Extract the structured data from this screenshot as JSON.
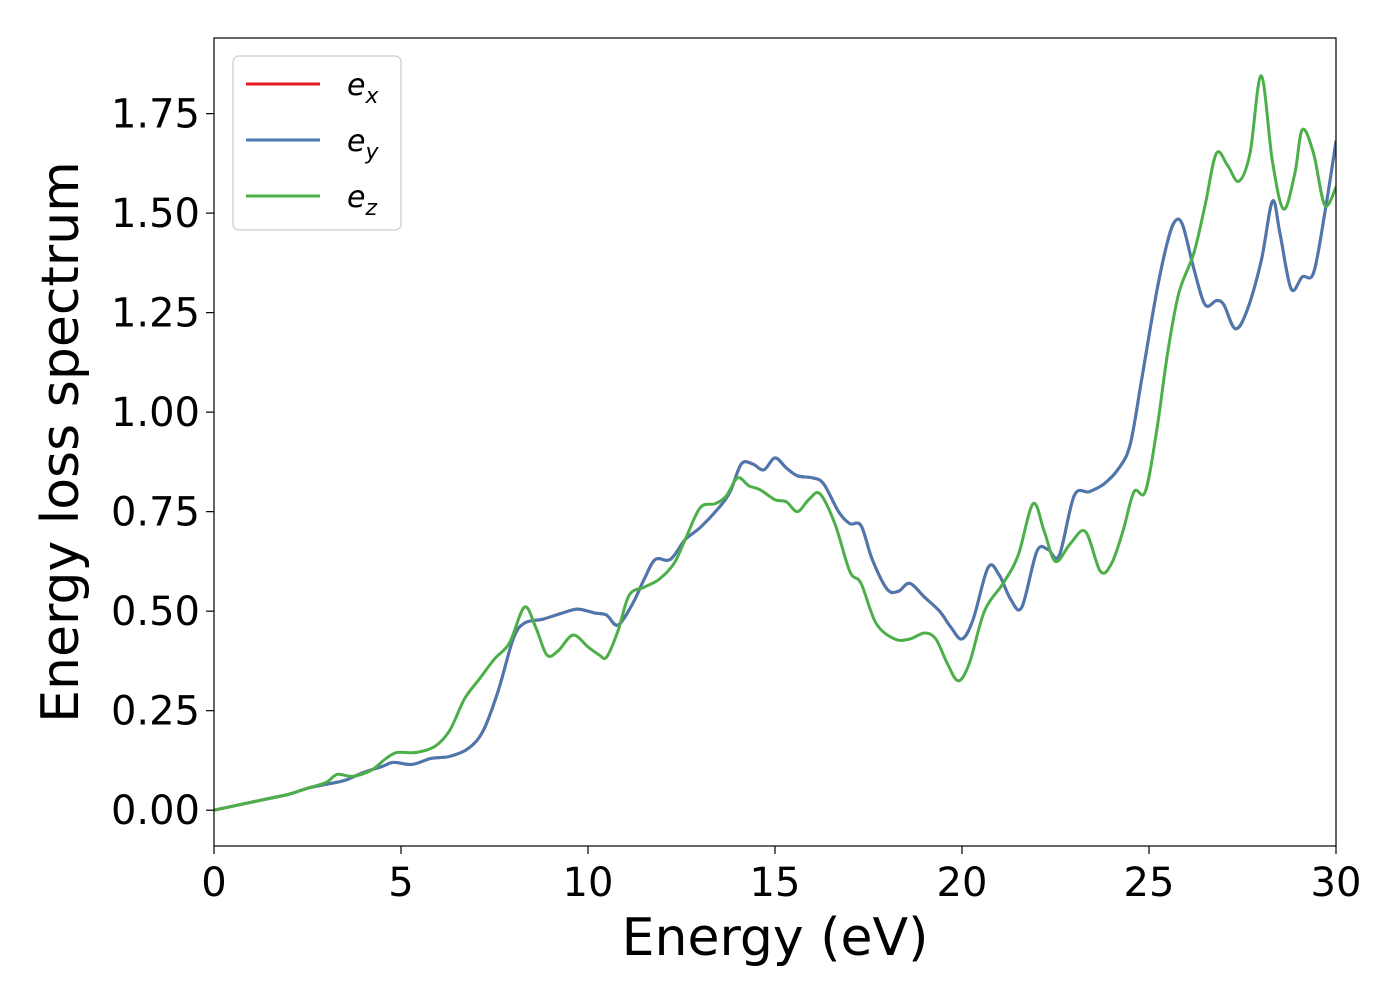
{
  "chart_data": {
    "type": "line",
    "title": "",
    "xlabel": "Energy (eV)",
    "ylabel": "Energy loss spectrum",
    "xlim": [
      0,
      30
    ],
    "ylim": [
      -0.09,
      1.94
    ],
    "grid": false,
    "legend_position": "top-left",
    "x_ticks": [
      "0",
      "5",
      "10",
      "15",
      "20",
      "25",
      "30"
    ],
    "y_ticks": [
      "0.00",
      "0.25",
      "0.50",
      "0.75",
      "1.00",
      "1.25",
      "1.50",
      "1.75"
    ],
    "series": [
      {
        "name": "e_x",
        "legend_base": "e",
        "legend_sub": "x",
        "color": "#e41a1c",
        "points": [
          [
            0,
            0
          ],
          [
            0.5,
            0.01
          ],
          [
            1,
            0.02
          ],
          [
            1.5,
            0.03
          ],
          [
            2,
            0.04
          ],
          [
            2.5,
            0.055
          ],
          [
            3,
            0.065
          ],
          [
            3.5,
            0.075
          ],
          [
            4,
            0.095
          ],
          [
            4.5,
            0.11
          ],
          [
            4.8,
            0.12
          ],
          [
            5.3,
            0.115
          ],
          [
            5.8,
            0.13
          ],
          [
            6.3,
            0.135
          ],
          [
            6.8,
            0.155
          ],
          [
            7.2,
            0.2
          ],
          [
            7.6,
            0.3
          ],
          [
            8,
            0.43
          ],
          [
            8.3,
            0.47
          ],
          [
            8.8,
            0.48
          ],
          [
            9.3,
            0.495
          ],
          [
            9.7,
            0.505
          ],
          [
            10,
            0.5
          ],
          [
            10.2,
            0.495
          ],
          [
            10.5,
            0.49
          ],
          [
            10.8,
            0.465
          ],
          [
            11.2,
            0.52
          ],
          [
            11.5,
            0.58
          ],
          [
            11.8,
            0.63
          ],
          [
            12.2,
            0.63
          ],
          [
            12.6,
            0.68
          ],
          [
            13,
            0.71
          ],
          [
            13.5,
            0.76
          ],
          [
            13.8,
            0.8
          ],
          [
            14.1,
            0.87
          ],
          [
            14.4,
            0.87
          ],
          [
            14.7,
            0.855
          ],
          [
            15,
            0.885
          ],
          [
            15.3,
            0.86
          ],
          [
            15.6,
            0.84
          ],
          [
            16,
            0.835
          ],
          [
            16.3,
            0.82
          ],
          [
            16.7,
            0.75
          ],
          [
            17,
            0.72
          ],
          [
            17.3,
            0.715
          ],
          [
            17.6,
            0.63
          ],
          [
            18,
            0.555
          ],
          [
            18.3,
            0.55
          ],
          [
            18.6,
            0.57
          ],
          [
            19,
            0.535
          ],
          [
            19.4,
            0.5
          ],
          [
            19.7,
            0.46
          ],
          [
            20,
            0.43
          ],
          [
            20.3,
            0.48
          ],
          [
            20.7,
            0.61
          ],
          [
            21,
            0.59
          ],
          [
            21.3,
            0.53
          ],
          [
            21.6,
            0.51
          ],
          [
            22,
            0.65
          ],
          [
            22.3,
            0.655
          ],
          [
            22.6,
            0.64
          ],
          [
            23,
            0.79
          ],
          [
            23.4,
            0.8
          ],
          [
            23.8,
            0.82
          ],
          [
            24.2,
            0.86
          ],
          [
            24.5,
            0.92
          ],
          [
            24.8,
            1.08
          ],
          [
            25.2,
            1.3
          ],
          [
            25.5,
            1.43
          ],
          [
            25.7,
            1.48
          ],
          [
            25.9,
            1.47
          ],
          [
            26.2,
            1.36
          ],
          [
            26.5,
            1.27
          ],
          [
            26.8,
            1.28
          ],
          [
            27,
            1.27
          ],
          [
            27.3,
            1.21
          ],
          [
            27.6,
            1.25
          ],
          [
            28,
            1.38
          ],
          [
            28.3,
            1.53
          ],
          [
            28.5,
            1.45
          ],
          [
            28.8,
            1.31
          ],
          [
            29.1,
            1.34
          ],
          [
            29.4,
            1.35
          ],
          [
            29.7,
            1.5
          ],
          [
            30,
            1.68
          ]
        ]
      },
      {
        "name": "e_y",
        "legend_base": "e",
        "legend_sub": "y",
        "color": "#4a78b0",
        "points": [
          [
            0,
            0
          ],
          [
            0.5,
            0.01
          ],
          [
            1,
            0.02
          ],
          [
            1.5,
            0.03
          ],
          [
            2,
            0.04
          ],
          [
            2.5,
            0.055
          ],
          [
            3,
            0.065
          ],
          [
            3.5,
            0.075
          ],
          [
            4,
            0.095
          ],
          [
            4.5,
            0.11
          ],
          [
            4.8,
            0.12
          ],
          [
            5.3,
            0.115
          ],
          [
            5.8,
            0.13
          ],
          [
            6.3,
            0.135
          ],
          [
            6.8,
            0.155
          ],
          [
            7.2,
            0.2
          ],
          [
            7.6,
            0.3
          ],
          [
            8,
            0.43
          ],
          [
            8.3,
            0.47
          ],
          [
            8.8,
            0.48
          ],
          [
            9.3,
            0.495
          ],
          [
            9.7,
            0.505
          ],
          [
            10,
            0.5
          ],
          [
            10.2,
            0.495
          ],
          [
            10.5,
            0.49
          ],
          [
            10.8,
            0.465
          ],
          [
            11.2,
            0.52
          ],
          [
            11.5,
            0.58
          ],
          [
            11.8,
            0.63
          ],
          [
            12.2,
            0.63
          ],
          [
            12.6,
            0.68
          ],
          [
            13,
            0.71
          ],
          [
            13.5,
            0.76
          ],
          [
            13.8,
            0.8
          ],
          [
            14.1,
            0.87
          ],
          [
            14.4,
            0.87
          ],
          [
            14.7,
            0.855
          ],
          [
            15,
            0.885
          ],
          [
            15.3,
            0.86
          ],
          [
            15.6,
            0.84
          ],
          [
            16,
            0.835
          ],
          [
            16.3,
            0.82
          ],
          [
            16.7,
            0.75
          ],
          [
            17,
            0.72
          ],
          [
            17.3,
            0.715
          ],
          [
            17.6,
            0.63
          ],
          [
            18,
            0.555
          ],
          [
            18.3,
            0.55
          ],
          [
            18.6,
            0.57
          ],
          [
            19,
            0.535
          ],
          [
            19.4,
            0.5
          ],
          [
            19.7,
            0.46
          ],
          [
            20,
            0.43
          ],
          [
            20.3,
            0.48
          ],
          [
            20.7,
            0.61
          ],
          [
            21,
            0.59
          ],
          [
            21.3,
            0.53
          ],
          [
            21.6,
            0.51
          ],
          [
            22,
            0.65
          ],
          [
            22.3,
            0.655
          ],
          [
            22.6,
            0.64
          ],
          [
            23,
            0.79
          ],
          [
            23.4,
            0.8
          ],
          [
            23.8,
            0.82
          ],
          [
            24.2,
            0.86
          ],
          [
            24.5,
            0.92
          ],
          [
            24.8,
            1.08
          ],
          [
            25.2,
            1.3
          ],
          [
            25.5,
            1.43
          ],
          [
            25.7,
            1.48
          ],
          [
            25.9,
            1.47
          ],
          [
            26.2,
            1.36
          ],
          [
            26.5,
            1.27
          ],
          [
            26.8,
            1.28
          ],
          [
            27,
            1.27
          ],
          [
            27.3,
            1.21
          ],
          [
            27.6,
            1.25
          ],
          [
            28,
            1.38
          ],
          [
            28.3,
            1.53
          ],
          [
            28.5,
            1.45
          ],
          [
            28.8,
            1.31
          ],
          [
            29.1,
            1.34
          ],
          [
            29.4,
            1.35
          ],
          [
            29.7,
            1.5
          ],
          [
            30,
            1.68
          ]
        ]
      },
      {
        "name": "e_z",
        "legend_base": "e",
        "legend_sub": "z",
        "color": "#4daf4a",
        "points": [
          [
            0,
            0
          ],
          [
            0.5,
            0.01
          ],
          [
            1,
            0.02
          ],
          [
            1.5,
            0.03
          ],
          [
            2,
            0.04
          ],
          [
            2.5,
            0.055
          ],
          [
            3,
            0.07
          ],
          [
            3.3,
            0.09
          ],
          [
            3.7,
            0.085
          ],
          [
            4.2,
            0.1
          ],
          [
            4.6,
            0.13
          ],
          [
            4.9,
            0.145
          ],
          [
            5.4,
            0.145
          ],
          [
            5.9,
            0.16
          ],
          [
            6.3,
            0.2
          ],
          [
            6.7,
            0.28
          ],
          [
            7.1,
            0.33
          ],
          [
            7.5,
            0.38
          ],
          [
            7.9,
            0.42
          ],
          [
            8.3,
            0.51
          ],
          [
            8.6,
            0.46
          ],
          [
            8.9,
            0.39
          ],
          [
            9.2,
            0.4
          ],
          [
            9.6,
            0.44
          ],
          [
            10,
            0.41
          ],
          [
            10.3,
            0.39
          ],
          [
            10.5,
            0.385
          ],
          [
            10.8,
            0.45
          ],
          [
            11.1,
            0.54
          ],
          [
            11.5,
            0.56
          ],
          [
            11.9,
            0.58
          ],
          [
            12.3,
            0.62
          ],
          [
            12.6,
            0.68
          ],
          [
            13,
            0.76
          ],
          [
            13.4,
            0.77
          ],
          [
            13.7,
            0.79
          ],
          [
            14,
            0.835
          ],
          [
            14.3,
            0.815
          ],
          [
            14.6,
            0.805
          ],
          [
            15,
            0.78
          ],
          [
            15.3,
            0.775
          ],
          [
            15.6,
            0.75
          ],
          [
            15.9,
            0.78
          ],
          [
            16.2,
            0.795
          ],
          [
            16.6,
            0.72
          ],
          [
            17,
            0.6
          ],
          [
            17.3,
            0.57
          ],
          [
            17.7,
            0.47
          ],
          [
            18.2,
            0.43
          ],
          [
            18.6,
            0.43
          ],
          [
            19,
            0.445
          ],
          [
            19.3,
            0.43
          ],
          [
            19.6,
            0.37
          ],
          [
            19.9,
            0.325
          ],
          [
            20.2,
            0.37
          ],
          [
            20.6,
            0.5
          ],
          [
            21.1,
            0.57
          ],
          [
            21.5,
            0.64
          ],
          [
            21.9,
            0.77
          ],
          [
            22.2,
            0.7
          ],
          [
            22.5,
            0.625
          ],
          [
            22.9,
            0.67
          ],
          [
            23.3,
            0.7
          ],
          [
            23.7,
            0.6
          ],
          [
            24,
            0.62
          ],
          [
            24.3,
            0.7
          ],
          [
            24.6,
            0.8
          ],
          [
            24.9,
            0.8
          ],
          [
            25.2,
            0.95
          ],
          [
            25.5,
            1.15
          ],
          [
            25.8,
            1.3
          ],
          [
            26.2,
            1.4
          ],
          [
            26.5,
            1.52
          ],
          [
            26.8,
            1.65
          ],
          [
            27.1,
            1.62
          ],
          [
            27.4,
            1.58
          ],
          [
            27.7,
            1.65
          ],
          [
            28,
            1.845
          ],
          [
            28.3,
            1.63
          ],
          [
            28.6,
            1.51
          ],
          [
            28.9,
            1.6
          ],
          [
            29.1,
            1.71
          ],
          [
            29.4,
            1.65
          ],
          [
            29.7,
            1.52
          ],
          [
            30,
            1.565
          ]
        ]
      }
    ]
  }
}
